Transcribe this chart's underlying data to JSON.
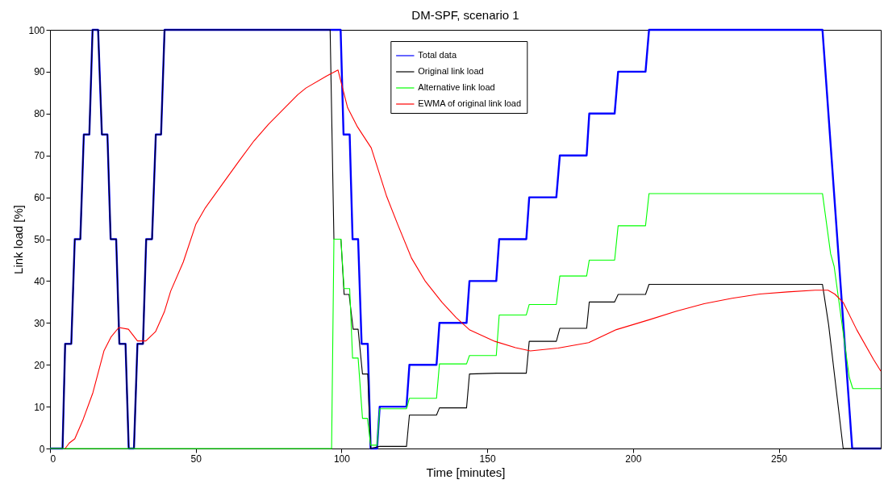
{
  "chart_data": {
    "type": "line",
    "title": "DM-SPF, scenario 1",
    "xlabel": "Time [minutes]",
    "ylabel": "Link load [%]",
    "xlim": [
      0,
      285
    ],
    "xticks": [
      0,
      50,
      100,
      150,
      200,
      250
    ],
    "ylim": [
      0,
      100
    ],
    "yticks": [
      0,
      10,
      20,
      30,
      40,
      50,
      60,
      70,
      80,
      90,
      100
    ],
    "grid": false,
    "legend": "top",
    "series": [
      {
        "name": "Total data",
        "color": "#0000ff",
        "x": [
          0,
          4.3,
          5.2,
          7.3,
          8.5,
          10.4,
          11.6,
          13.5,
          14.6,
          16.5,
          17.8,
          19.7,
          20.8,
          22.7,
          23.8,
          25.9,
          27,
          28.8,
          30,
          31.9,
          33,
          35,
          36.3,
          38.1,
          39.3,
          99.7,
          100.7,
          102.8,
          103.8,
          105.7,
          106.9,
          109,
          110,
          112.2,
          113.1,
          122.3,
          123.3,
          132.6,
          133.6,
          142.9,
          143.9,
          153.1,
          154.1,
          163.4,
          164.4,
          173.7,
          174.9,
          184.1,
          185,
          193.7,
          194.9,
          204.3,
          205.5,
          265,
          275.2,
          285
        ],
        "values": [
          0,
          0,
          25,
          25,
          50,
          50,
          75,
          75,
          100,
          100,
          75,
          75,
          50,
          50,
          25,
          25,
          0,
          0,
          25,
          25,
          50,
          50,
          75,
          75,
          100,
          100,
          75,
          75,
          50,
          50,
          25,
          25,
          0,
          0,
          10,
          10,
          20,
          20,
          30,
          30,
          40,
          40,
          50,
          50,
          60,
          60,
          70,
          70,
          80,
          80,
          90,
          90,
          100,
          100,
          0,
          0
        ]
      },
      {
        "name": "Original link load",
        "color": "#000000",
        "x": [
          0,
          4.3,
          5.2,
          7.3,
          8.5,
          10.4,
          11.6,
          13.5,
          14.6,
          16.5,
          17.8,
          19.7,
          20.8,
          22.7,
          23.8,
          25.9,
          27,
          28.8,
          30,
          31.9,
          33,
          35,
          36.3,
          38.1,
          39.3,
          96.1,
          97.4,
          99.8,
          100.9,
          102.6,
          104,
          105.7,
          107.2,
          109,
          110,
          113.1,
          122.3,
          123.3,
          132.6,
          133.6,
          142.9,
          143.9,
          153.2,
          163.4,
          164.4,
          173.7,
          174.9,
          184.1,
          185,
          193.7,
          194.9,
          204.3,
          205.5,
          265,
          267.1,
          272.1,
          285
        ],
        "values": [
          0,
          0,
          25,
          25,
          50,
          50,
          75,
          75,
          100,
          100,
          75,
          75,
          50,
          50,
          25,
          25,
          0,
          0,
          25,
          25,
          50,
          50,
          75,
          75,
          100,
          100,
          50,
          50,
          36.8,
          36.8,
          28.5,
          28.5,
          17.8,
          17.8,
          0,
          0.5,
          0.5,
          8,
          8,
          9.7,
          9.7,
          17.8,
          18,
          18,
          25.6,
          25.6,
          28.7,
          28.7,
          35,
          35,
          36.8,
          36.8,
          39.2,
          39.2,
          29.6,
          0,
          0
        ]
      },
      {
        "name": "Alternative link load",
        "color": "#00ff00",
        "x": [
          0,
          96.6,
          97.4,
          99.8,
          100.9,
          102.8,
          103.8,
          105.7,
          107.2,
          108.9,
          110,
          112.2,
          113.1,
          122.3,
          123.3,
          132.6,
          133.6,
          142.9,
          143.9,
          153.1,
          154.1,
          163.4,
          164.4,
          173.7,
          174.9,
          184.1,
          185,
          193.7,
          194.9,
          204.3,
          205.5,
          265,
          267.8,
          269,
          274.2,
          275.4,
          285
        ],
        "values": [
          0,
          0,
          50,
          50,
          38.2,
          38.2,
          21.6,
          21.6,
          7.2,
          7.2,
          0.8,
          0.8,
          9.5,
          9.5,
          12,
          12,
          20.2,
          20.2,
          22.2,
          22.2,
          31.9,
          31.9,
          34.4,
          34.4,
          41.2,
          41.2,
          45,
          45,
          53.2,
          53.2,
          60.9,
          60.9,
          46.5,
          43.5,
          17,
          14.3,
          14.3
        ]
      },
      {
        "name": "EWMA of original link load",
        "color": "#ff0000",
        "x": [
          5.2,
          6.6,
          8.5,
          11.4,
          14.7,
          18.5,
          20.9,
          23.6,
          26.9,
          30,
          32.9,
          36.2,
          39.2,
          41.4,
          45.7,
          50,
          53.3,
          60,
          65,
          70,
          75,
          80,
          85,
          87.8,
          95,
          98.8,
          102.1,
          105.5,
          110.2,
          115.5,
          119.3,
          124,
          128.8,
          134.5,
          139.3,
          144,
          152.6,
          159.7,
          164.8,
          174.3,
          184.8,
          194.3,
          205.8,
          214.9,
          224.4,
          234,
          243.5,
          253,
          262.5,
          266.9,
          269.2,
          272.1,
          276.8,
          282.5,
          285
        ],
        "values": [
          0,
          1.3,
          2.3,
          7,
          13.3,
          23.3,
          26.6,
          28.9,
          28.5,
          25.7,
          25.7,
          27.9,
          32.6,
          37.6,
          44.5,
          53.5,
          57.5,
          64,
          68.8,
          73.5,
          77.5,
          81,
          84.5,
          86.1,
          89,
          90.4,
          81.4,
          76.8,
          71.8,
          60.2,
          53.5,
          45.5,
          39.9,
          34.9,
          31.3,
          28.3,
          25.6,
          24.1,
          23.3,
          24,
          25.3,
          28.4,
          30.8,
          32.8,
          34.6,
          35.9,
          36.9,
          37.4,
          37.8,
          37.8,
          36.9,
          34.9,
          28.3,
          21.3,
          18.5
        ]
      }
    ]
  }
}
